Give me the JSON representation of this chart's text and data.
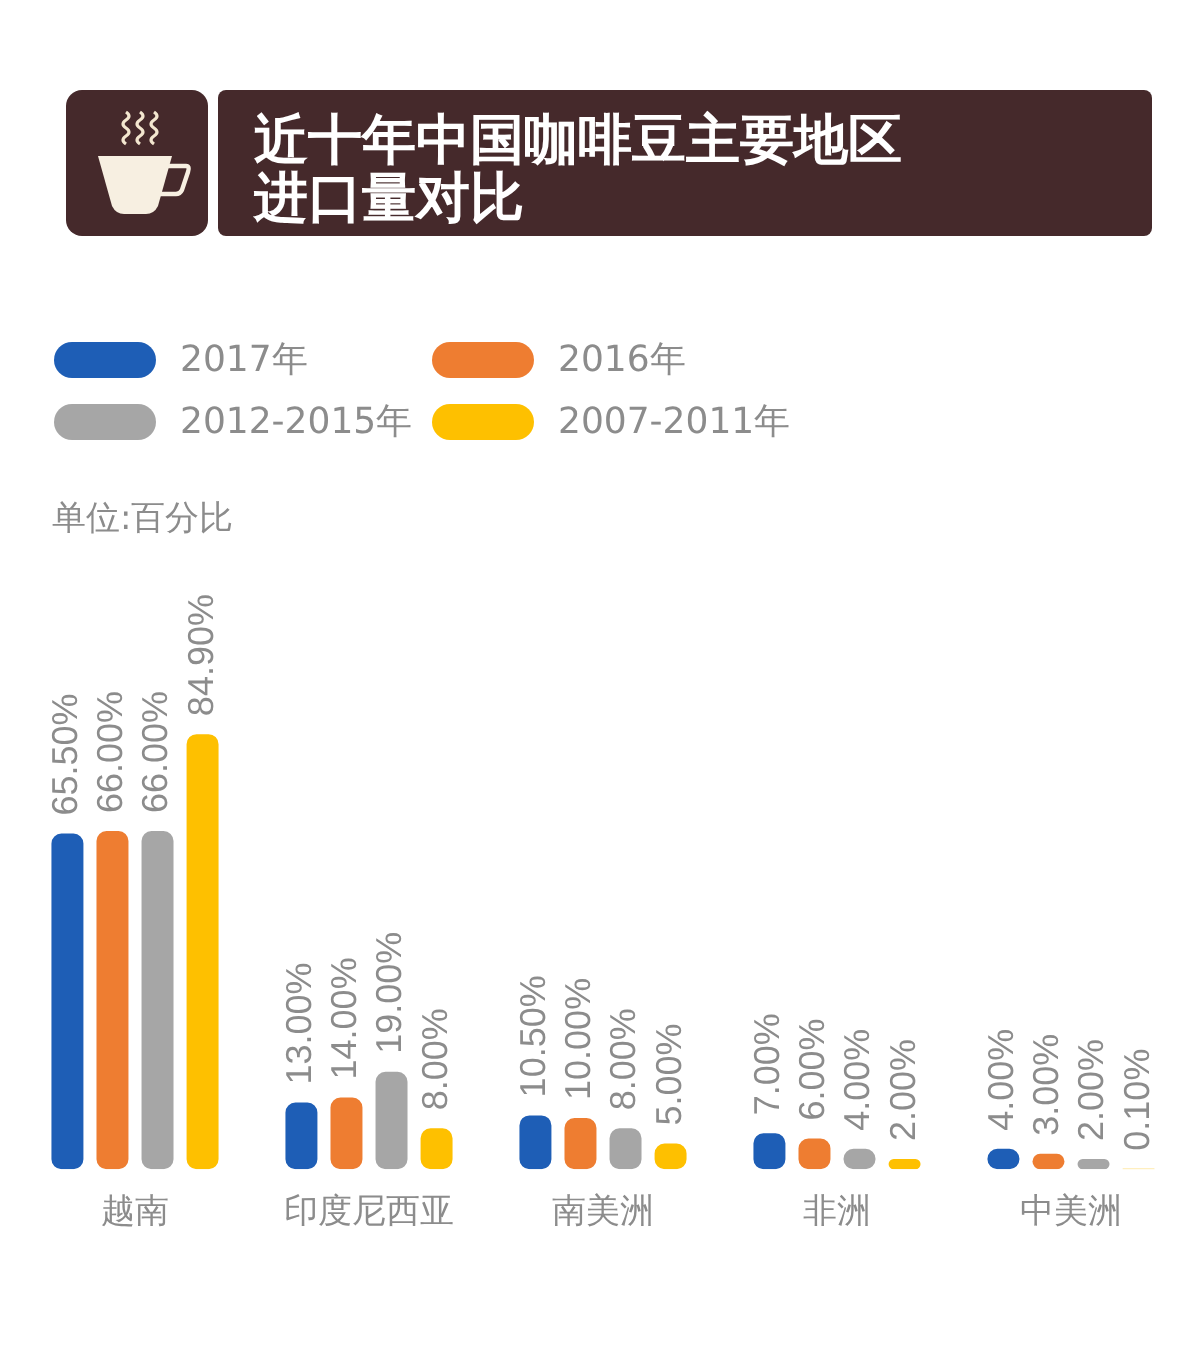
{
  "chart_data": {
    "type": "bar",
    "title": "近十年中国咖啡豆主要地区进口量对比",
    "annotations": [
      "单位:百分比"
    ],
    "categories": [
      "越南",
      "印度尼西亚",
      "南美洲",
      "非洲",
      "中美洲"
    ],
    "series": [
      {
        "name": "2017年",
        "color": "#1e5eb6",
        "values": [
          65.5,
          13,
          10.5,
          7,
          4
        ],
        "value_labels": [
          "65.50%",
          "13.00%",
          "10.50%",
          "7.00%",
          "4.00%"
        ]
      },
      {
        "name": "2016年",
        "color": "#ee7d31",
        "values": [
          66,
          14,
          10,
          6,
          3
        ],
        "value_labels": [
          "66.00%",
          "14.00%",
          "10.00%",
          "6.00%",
          "3.00%"
        ]
      },
      {
        "name": "2012-2015年",
        "color": "#a6a6a6",
        "values": [
          66,
          19,
          8,
          4,
          2
        ],
        "value_labels": [
          "66.00%",
          "19.00%",
          "8.00%",
          "4.00%",
          "2.00%"
        ]
      },
      {
        "name": "2007-2011年",
        "color": "#fec000",
        "values": [
          84.9,
          8,
          5,
          2,
          0.1
        ],
        "value_labels": [
          "84.90%",
          "8.00%",
          "5.00%",
          "2.00%",
          "0.10%"
        ]
      }
    ],
    "tick_labels": "x",
    "legend": "top left"
  }
}
